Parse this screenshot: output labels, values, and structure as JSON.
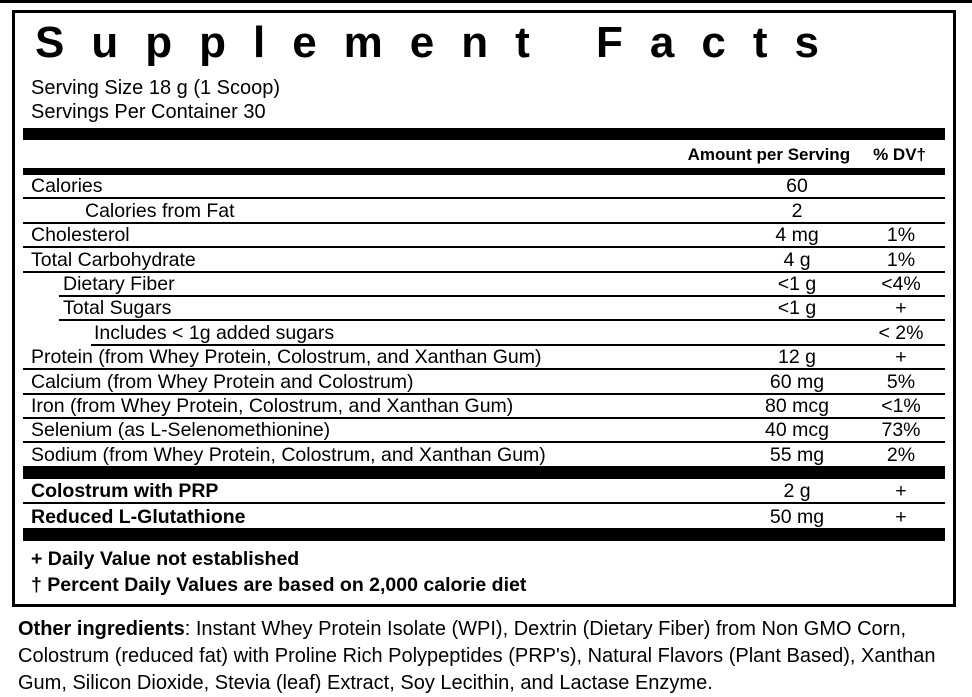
{
  "label": {
    "title": "Supplement Facts",
    "serving_size": "Serving Size 18 g (1 Scoop)",
    "servings_per_container": "Servings Per Container 30",
    "columns": {
      "amount": "Amount per Serving",
      "dv": "% DV†"
    },
    "rows": [
      {
        "name": "Calories",
        "amount": "60",
        "dv": "",
        "indent": 0,
        "line": "full"
      },
      {
        "name": "Calories from Fat",
        "amount": "2",
        "dv": "",
        "indent": 2,
        "line": "full"
      },
      {
        "name": "Cholesterol",
        "amount": "4 mg",
        "dv": "1%",
        "indent": 0,
        "line": "full"
      },
      {
        "name": "Total Carbohydrate",
        "amount": "4 g",
        "dv": "1%",
        "indent": 0,
        "line": "full"
      },
      {
        "name": "Dietary Fiber",
        "amount": "<1 g",
        "dv": "<4%",
        "indent": 1,
        "line": "sub"
      },
      {
        "name": "Total Sugars",
        "amount": "<1 g",
        "dv": "+",
        "indent": 1,
        "line": "sub"
      },
      {
        "name": "Includes < 1g added sugars",
        "amount": "",
        "dv": "< 2%",
        "indent": 3,
        "line": "deep"
      },
      {
        "name": "Protein (from Whey Protein, Colostrum, and Xanthan Gum)",
        "amount": "12 g",
        "dv": "+",
        "indent": 0,
        "line": "full"
      },
      {
        "name": "Calcium (from Whey Protein and Colostrum)",
        "amount": "60 mg",
        "dv": "5%",
        "indent": 0,
        "line": "full"
      },
      {
        "name": "Iron (from Whey Protein, Colostrum, and Xanthan Gum)",
        "amount": "80 mcg",
        "dv": "<1%",
        "indent": 0,
        "line": "full"
      },
      {
        "name": "Selenium (as L-Selenomethionine)",
        "amount": "40 mcg",
        "dv": "73%",
        "indent": 0,
        "line": "full"
      },
      {
        "name": "Sodium (from Whey Protein, Colostrum, and Xanthan Gum)",
        "amount": "55 mg",
        "dv": "2%",
        "indent": 0,
        "line": "none"
      }
    ],
    "extra_rows": [
      {
        "name": "Colostrum with PRP",
        "amount": "2 g",
        "dv": "+",
        "indent": 0,
        "bold": true,
        "line": "full"
      },
      {
        "name": "Reduced L-Glutathione",
        "amount": "50 mg",
        "dv": "+",
        "indent": 0,
        "bold": true,
        "line": "none"
      }
    ],
    "footnotes": [
      "+ Daily Value not established",
      "†  Percent Daily Values are based on 2,000 calorie diet"
    ]
  },
  "footer": {
    "other_ingredients_label": "Other ingredients",
    "other_ingredients_text": ": Instant Whey Protein Isolate (WPI), Dextrin (Dietary Fiber) from Non GMO Corn, Colostrum (reduced fat) with Proline Rich Polypeptides (PRP's), Natural Flavors (Plant Based), Xanthan Gum, Silicon Dioxide, Stevia (leaf) Extract, Soy Lecithin, and Lactase Enzyme."
  },
  "colors": {
    "text": "#000000",
    "background": "#ffffff"
  }
}
